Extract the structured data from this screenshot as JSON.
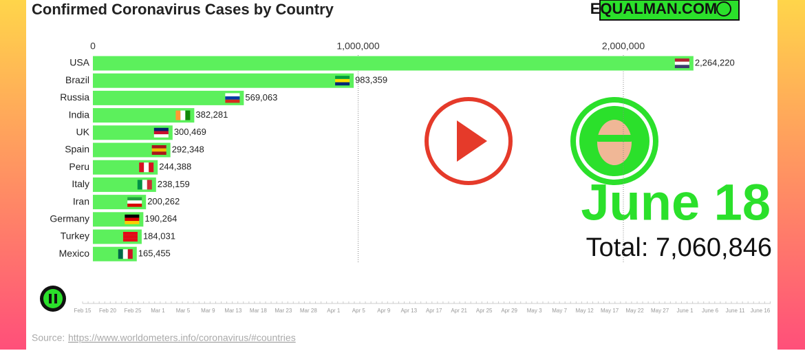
{
  "chart_data": {
    "type": "bar",
    "orientation": "horizontal",
    "title": "Confirmed Coronavirus Cases by Country",
    "categories": [
      "USA",
      "Brazil",
      "Russia",
      "India",
      "UK",
      "Spain",
      "Peru",
      "Italy",
      "Iran",
      "Germany",
      "Turkey",
      "Mexico"
    ],
    "values": [
      2264220,
      983359,
      569063,
      382281,
      300469,
      292348,
      244388,
      238159,
      200262,
      190264,
      184031,
      165455
    ],
    "value_labels": [
      "2,264,220",
      "983,359",
      "569,063",
      "382,281",
      "300,469",
      "292,348",
      "244,388",
      "238,159",
      "200,262",
      "190,264",
      "184,031",
      "165,455"
    ],
    "color": "#5cf05c",
    "xlim": [
      0,
      2500000
    ],
    "xticks": [
      0,
      {
        "value": 1000000,
        "label": "1,000,000"
      },
      {
        "value": 2000000,
        "label": "2,000,000"
      }
    ],
    "grid": true,
    "date": "June 18",
    "total": "Total: 7,060,846",
    "brand": "EQUALMAN.COM",
    "timeline": [
      "Feb 15",
      "Feb 20",
      "Feb 25",
      "Mar 1",
      "Mar 5",
      "Mar 9",
      "Mar 13",
      "Mar 18",
      "Mar 23",
      "Mar 28",
      "Apr 1",
      "Apr 5",
      "Apr 9",
      "Apr 13",
      "Apr 17",
      "Apr 21",
      "Apr 25",
      "Apr 29",
      "May 3",
      "May 7",
      "May 12",
      "May 17",
      "May 22",
      "May 27",
      "June 1",
      "June 6",
      "June 11",
      "June 16"
    ],
    "source_label": "Source:",
    "source_url": "https://www.worldometers.info/coronavirus/#countries"
  }
}
